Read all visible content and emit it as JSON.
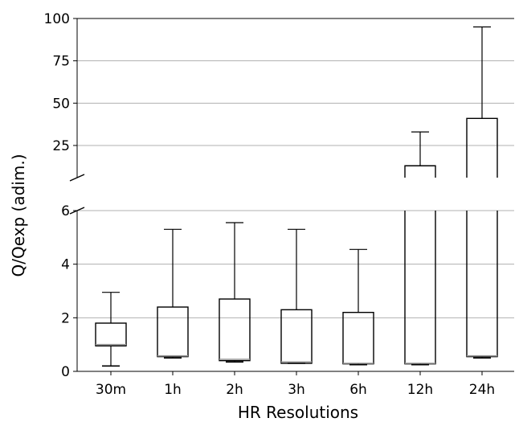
{
  "chart_data": {
    "type": "box",
    "xlabel": "HR Resolutions",
    "ylabel": "Q/Qexp (adim.)",
    "categories": [
      "30m",
      "1h",
      "2h",
      "3h",
      "6h",
      "12h",
      "24h"
    ],
    "boxes": [
      {
        "whislo": 0.2,
        "q1": 0.95,
        "median": 1.0,
        "q3": 1.8,
        "whishi": 2.95
      },
      {
        "whislo": 0.5,
        "q1": 0.55,
        "median": 0.58,
        "q3": 2.4,
        "whishi": 5.3
      },
      {
        "whislo": 0.35,
        "q1": 0.4,
        "median": 0.45,
        "q3": 2.7,
        "whishi": 5.55
      },
      {
        "whislo": 0.3,
        "q1": 0.3,
        "median": 0.35,
        "q3": 2.3,
        "whishi": 5.3
      },
      {
        "whislo": 0.25,
        "q1": 0.28,
        "median": 0.3,
        "q3": 2.2,
        "whishi": 4.55
      },
      {
        "whislo": 0.25,
        "q1": 0.28,
        "median": 0.3,
        "q3": 13,
        "whishi": 33
      },
      {
        "whislo": 0.5,
        "q1": 0.55,
        "median": 0.58,
        "q3": 41,
        "whishi": 95
      }
    ],
    "upper_panel": {
      "ylim": [
        6,
        100
      ],
      "yticks": [
        25,
        50,
        75,
        100
      ]
    },
    "lower_panel": {
      "ylim": [
        0,
        6
      ],
      "yticks": [
        0,
        2,
        4,
        6
      ]
    },
    "broken_axis": true,
    "grid": "horizontal",
    "colors": {
      "box": "#000000",
      "median": "#999999",
      "grid": "#b0b0b0"
    }
  }
}
